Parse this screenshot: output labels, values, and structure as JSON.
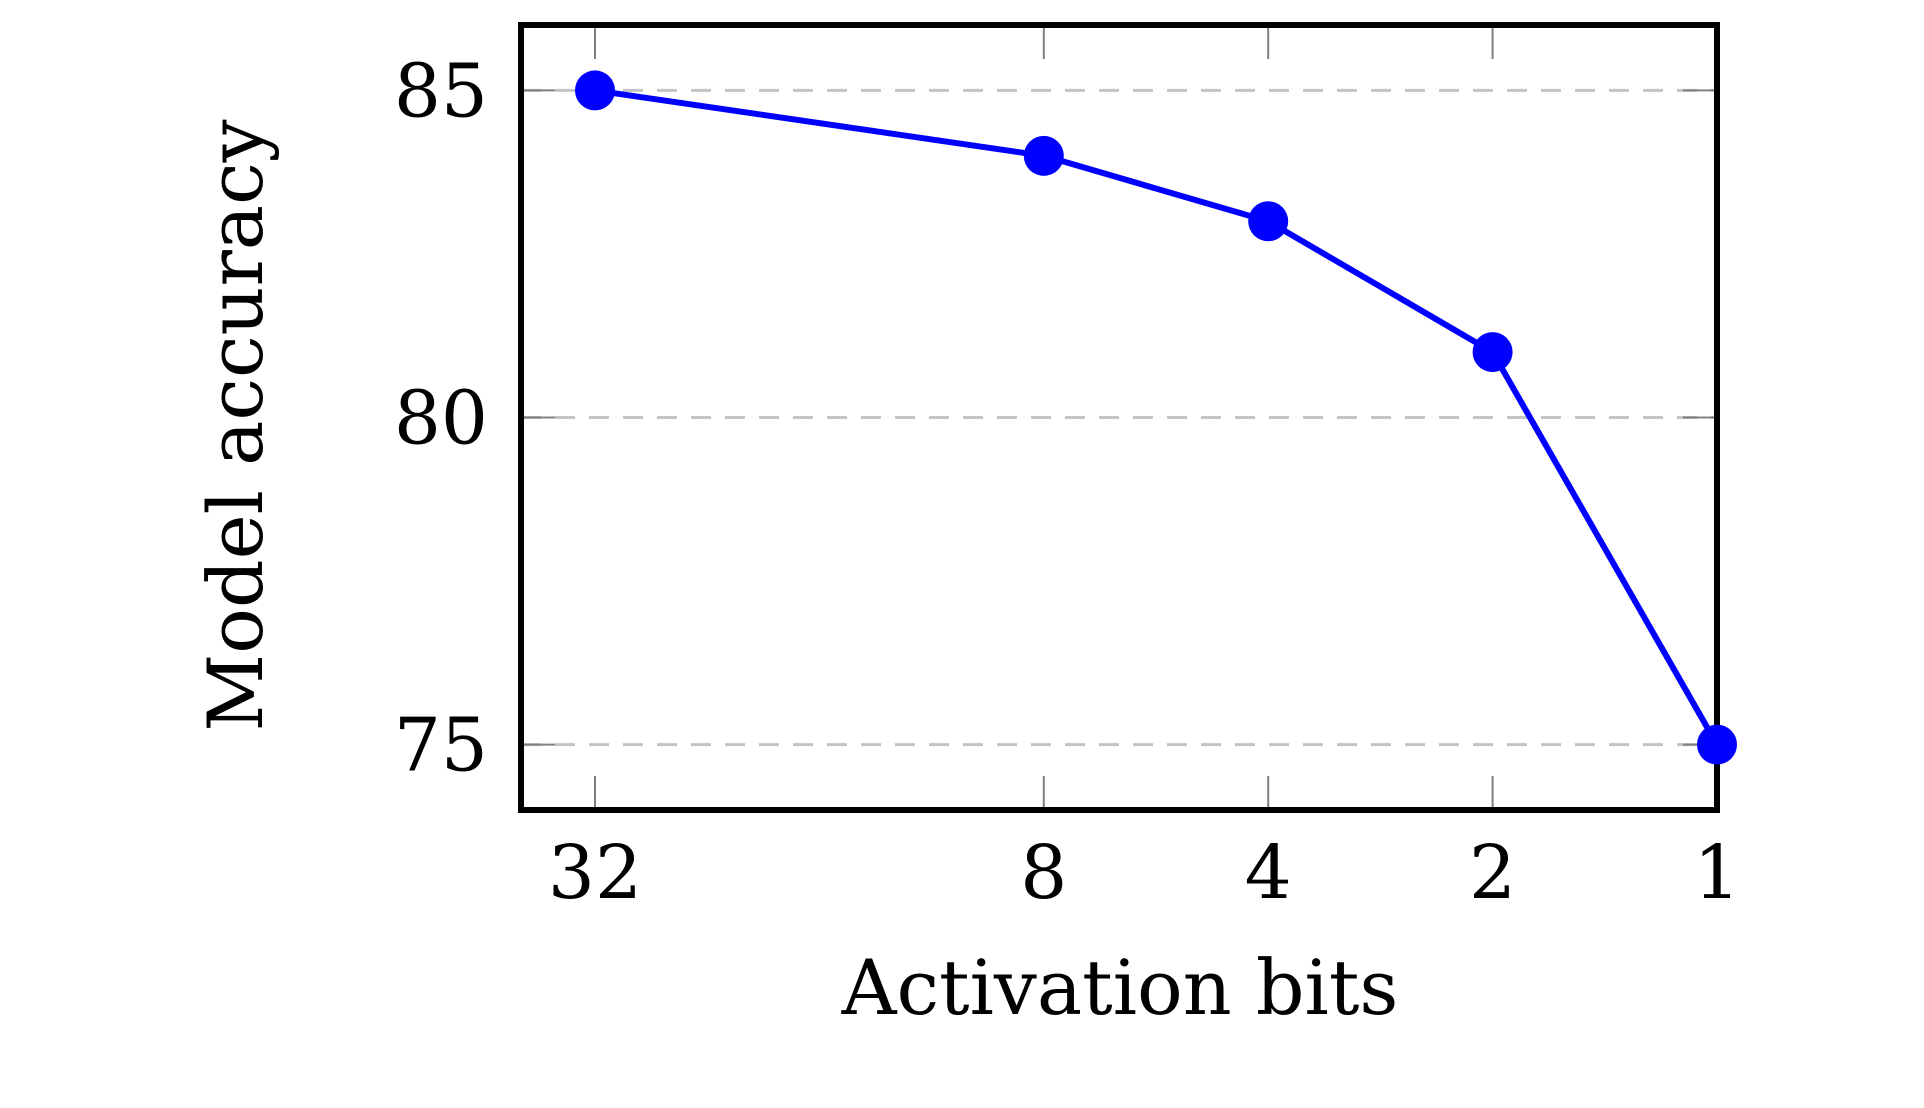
{
  "chart_data": {
    "type": "line",
    "xlabel": "Activation bits",
    "ylabel": "Model accuracy",
    "x_tick_labels": [
      "32",
      "8",
      "4",
      "2",
      "1"
    ],
    "y_ticks": [
      75,
      80,
      85
    ],
    "y_tick_labels": [
      "75",
      "80",
      "85"
    ],
    "ylim": [
      74,
      86
    ],
    "grid": "horizontal dashed",
    "series": [
      {
        "color": "#0000ff",
        "marker": "circle",
        "points": [
          {
            "x": 32,
            "y": 85
          },
          {
            "x": 8,
            "y": 84
          },
          {
            "x": 4,
            "y": 83
          },
          {
            "x": 2,
            "y": 81
          },
          {
            "x": 1,
            "y": 75
          }
        ]
      }
    ]
  }
}
